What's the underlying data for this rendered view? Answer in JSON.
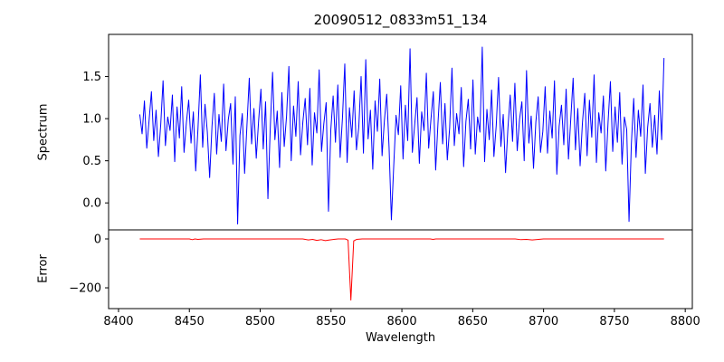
{
  "figure": {
    "title": "20090512_0833m51_134",
    "xlabel": "Wavelength",
    "background": "#ffffff",
    "axis_color": "#000000"
  },
  "chart_data": [
    {
      "type": "line",
      "title": "20090512_0833m51_134",
      "ylabel": "Spectrum",
      "xlim": [
        8393,
        8805
      ],
      "ylim": [
        -0.32,
        2.0
      ],
      "yticks": [
        0.0,
        0.5,
        1.0,
        1.5
      ],
      "ytick_labels": [
        "0.0",
        "0.5",
        "1.0",
        "1.5"
      ],
      "grid": false,
      "legend": "none",
      "series": [
        {
          "name": "spectrum",
          "color": "#0000ff",
          "x_start": 8415,
          "x_end": 8785,
          "values": [
            1.05,
            0.82,
            1.21,
            0.65,
            0.98,
            1.32,
            0.74,
            1.1,
            0.55,
            0.93,
            1.45,
            0.68,
            1.02,
            0.86,
            1.28,
            0.49,
            1.14,
            0.77,
            1.38,
            0.6,
            0.95,
            1.22,
            0.71,
            1.08,
            0.38,
            0.89,
            1.52,
            0.66,
            1.17,
            0.84,
            0.3,
            0.91,
            1.3,
            0.58,
            1.05,
            0.73,
            1.41,
            0.62,
            0.99,
            1.18,
            0.46,
            1.26,
            -0.25,
            0.8,
            1.06,
            0.35,
            0.92,
            1.48,
            0.7,
            1.12,
            0.53,
            0.97,
            1.35,
            0.64,
            1.2,
            0.05,
            0.88,
            1.55,
            0.75,
            1.09,
            0.42,
            1.31,
            0.67,
            1.03,
            1.62,
            0.5,
            1.15,
            0.79,
            1.44,
            0.57,
            0.96,
            1.24,
            0.69,
            1.36,
            0.45,
            1.07,
            0.83,
            1.58,
            0.61,
            0.94,
            1.19,
            -0.1,
            0.87,
            1.27,
            0.72,
            1.4,
            0.54,
            1.01,
            1.65,
            0.48,
            1.13,
            0.78,
            1.33,
            0.63,
            0.9,
            1.5,
            0.59,
            1.7,
            0.76,
            1.1,
            0.4,
            1.21,
            0.85,
            1.47,
            0.56,
            0.98,
            1.29,
            0.66,
            -0.2,
            0.44,
            1.04,
            0.81,
            1.39,
            0.52,
            1.16,
            0.74,
            1.83,
            0.6,
            0.93,
            1.25,
            0.47,
            1.08,
            0.86,
            1.54,
            0.65,
            1.0,
            1.32,
            0.39,
            0.95,
            1.43,
            0.7,
            1.18,
            0.51,
            0.89,
            1.6,
            0.68,
            1.06,
            0.82,
            1.37,
            0.43,
            0.97,
            1.23,
            0.64,
            1.46,
            0.58,
            1.02,
            0.84,
            1.85,
            0.49,
            1.11,
            0.75,
            1.34,
            0.55,
            0.92,
            1.49,
            0.67,
            1.05,
            0.36,
            0.88,
            1.28,
            0.73,
            1.42,
            0.62,
            0.99,
            1.2,
            0.5,
            1.57,
            0.71,
            1.03,
            0.41,
            0.96,
            1.26,
            0.6,
            0.85,
            1.38,
            0.59,
            1.09,
            0.77,
            1.45,
            0.34,
            0.91,
            1.16,
            0.69,
            1.35,
            0.52,
            1.0,
            1.48,
            0.63,
            1.12,
            0.44,
            0.95,
            1.3,
            0.56,
            1.22,
            0.78,
            1.52,
            0.48,
            1.07,
            0.83,
            1.27,
            0.38,
            0.96,
            1.44,
            0.61,
            1.14,
            0.72,
            1.31,
            0.46,
            1.02,
            0.87,
            -0.22,
            0.7,
            1.24,
            0.54,
            1.1,
            0.79,
            1.4,
            0.35,
            0.9,
            1.18,
            0.66,
            1.04,
            0.58,
            1.33,
            0.75,
            1.72
          ]
        }
      ]
    },
    {
      "type": "line",
      "ylabel": "Error",
      "xlabel": "Wavelength",
      "xlim": [
        8393,
        8805
      ],
      "ylim": [
        -285,
        37
      ],
      "yticks": [
        0,
        -200
      ],
      "ytick_labels": [
        "0",
        "−200"
      ],
      "xticks": [
        8400,
        8450,
        8500,
        8550,
        8600,
        8650,
        8700,
        8750,
        8800
      ],
      "xtick_labels": [
        "8400",
        "8450",
        "8500",
        "8550",
        "8600",
        "8650",
        "8700",
        "8750",
        "8800"
      ],
      "grid": false,
      "legend": "none",
      "series": [
        {
          "name": "error",
          "color": "#ff0000",
          "x": [
            8415,
            8450,
            8452,
            8454,
            8456,
            8460,
            8530,
            8534,
            8537,
            8540,
            8543,
            8546,
            8549,
            8552,
            8555,
            8560,
            8562,
            8564,
            8566,
            8568,
            8572,
            8620,
            8622,
            8624,
            8680,
            8684,
            8688,
            8692,
            8700,
            8785
          ],
          "y": [
            0,
            0,
            -3,
            0,
            -2,
            0,
            0,
            -4,
            -2,
            -6,
            -3,
            -7,
            -4,
            -2,
            0,
            0,
            -5,
            -250,
            -8,
            -2,
            0,
            0,
            -2,
            0,
            0,
            -3,
            -2,
            -4,
            0,
            0
          ]
        }
      ]
    }
  ]
}
